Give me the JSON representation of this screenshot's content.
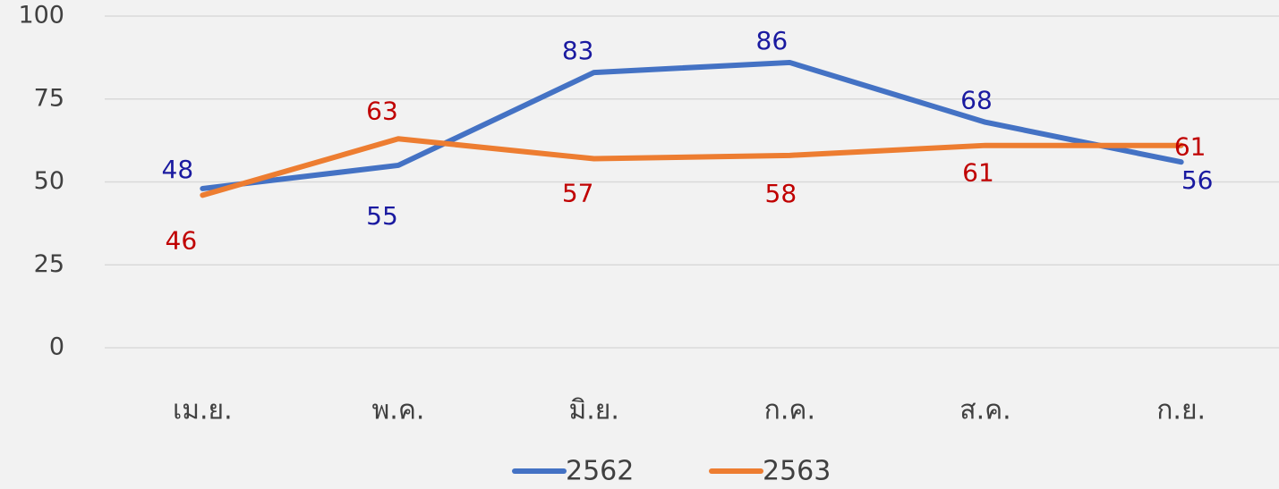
{
  "chart_data": {
    "type": "line",
    "categories": [
      "เม.ย.",
      "พ.ค.",
      "มิ.ย.",
      "ก.ค.",
      "ส.ค.",
      "ก.ย."
    ],
    "series": [
      {
        "name": "2562",
        "color": "#4472c4",
        "label_color": "#1a1aa0",
        "values": [
          48,
          55,
          83,
          86,
          68,
          56
        ]
      },
      {
        "name": "2563",
        "color": "#ed7d31",
        "label_color": "#c00000",
        "values": [
          46,
          63,
          57,
          58,
          61,
          61
        ]
      }
    ],
    "ylim": [
      0,
      100
    ],
    "yticks": [
      0,
      25,
      50,
      75,
      100
    ],
    "grid": true,
    "legend": "bottom"
  }
}
